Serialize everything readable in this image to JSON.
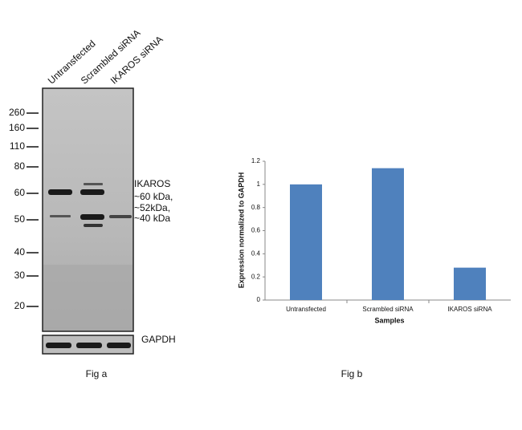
{
  "blot": {
    "lanes": [
      "Untransfected",
      "Scrambled siRNA",
      "IKAROS siRNA"
    ],
    "markers": [
      260,
      160,
      110,
      80,
      60,
      50,
      40,
      30,
      20
    ],
    "annotation": [
      "IKAROS",
      "~60 kDa,",
      "~52kDa,",
      "~40 kDa"
    ],
    "loading_control": "GAPDH",
    "caption": "Fig a"
  },
  "chart_data": {
    "type": "bar",
    "caption": "Fig b",
    "categories": [
      "Untransfected",
      "Scrambled siRNA",
      "IKAROS siRNA"
    ],
    "values": [
      1.0,
      1.14,
      0.28
    ],
    "color": "#4f81bd",
    "ylim": [
      0,
      1.2
    ],
    "yticks": [
      0,
      0.2,
      0.4,
      0.6,
      0.8,
      1,
      1.2
    ],
    "xlabel": "Samples",
    "ylabel": "Expression normalized to GAPDH"
  }
}
